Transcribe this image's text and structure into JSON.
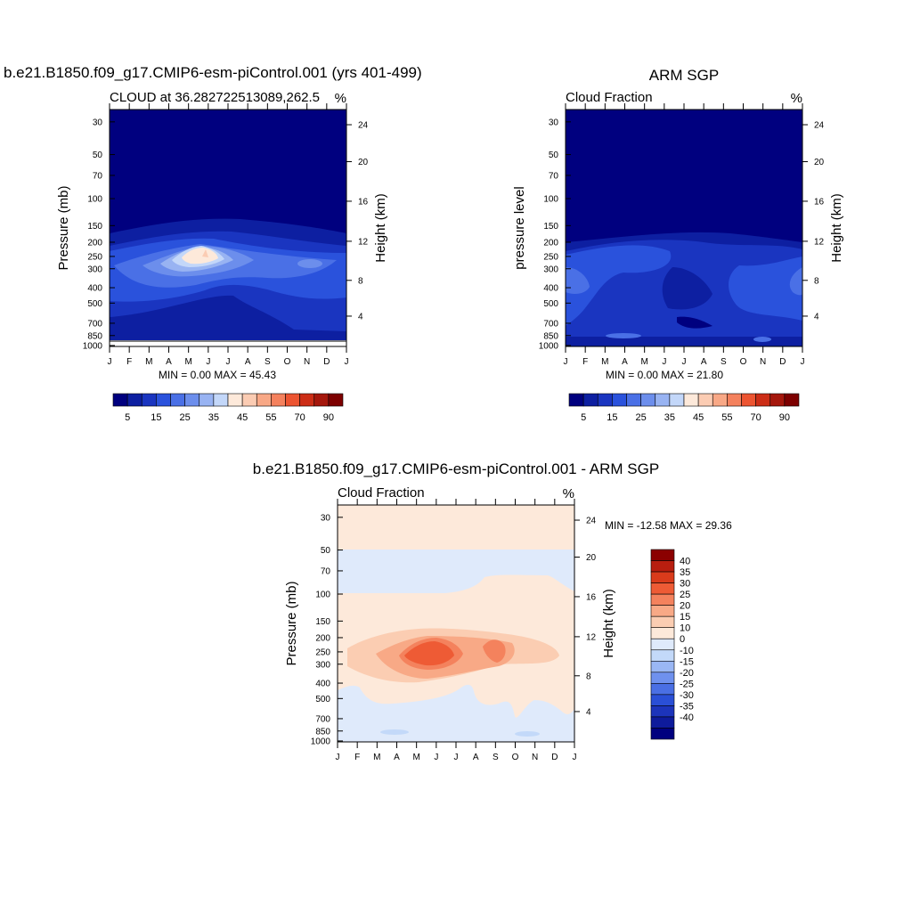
{
  "colors": {
    "seq": [
      "#00007f",
      "#0d1fa1",
      "#1a35c0",
      "#2a52dc",
      "#4a70e6",
      "#6c8eec",
      "#98b3f2",
      "#c3d7f9",
      "#fde9da",
      "#fbccb3",
      "#f8a886",
      "#f4815d",
      "#ec5431",
      "#cc2d16",
      "#a5170c",
      "#7d0000"
    ],
    "diff": [
      "#00007f",
      "#0e1b9c",
      "#1c34bb",
      "#2a4fd6",
      "#4a6fe4",
      "#6f91ee",
      "#9ab7f4",
      "#c3d9f9",
      "#dfeafb",
      "#fde9da",
      "#fbcdb2",
      "#f8a986",
      "#f4825d",
      "#ee5b35",
      "#d93b1b",
      "#b81e0f",
      "#8b0000"
    ]
  },
  "chart_data": [
    {
      "type": "heatmap",
      "title": "b.e21.B1850.f09_g17.CMIP6-esm-piControl.001 (yrs 401-499)",
      "subtitle_left": "CLOUD at 36.282722513089,262.5",
      "subtitle_right": "%",
      "ylabel": "Pressure (mb)",
      "ylabel_right": "Height (km)",
      "stats": "MIN =   0.00 MAX =  45.43",
      "x_ticks": [
        "J",
        "F",
        "M",
        "A",
        "M",
        "J",
        "J",
        "A",
        "S",
        "O",
        "N",
        "D",
        "J"
      ],
      "y_ticks": [
        "30",
        "50",
        "70",
        "100",
        "150",
        "200",
        "250",
        "300",
        "400",
        "500",
        "700",
        "850",
        "1000"
      ],
      "y_ticks_right": [
        "24",
        "20",
        "16",
        "12",
        "8",
        "4"
      ],
      "colorbar_labels": [
        "5",
        "15",
        "25",
        "35",
        "45",
        "55",
        "70",
        "90"
      ],
      "levels": [
        0,
        5,
        10,
        15,
        20,
        25,
        30,
        35,
        40,
        45,
        50,
        55,
        60,
        70,
        80,
        90
      ],
      "value_range": [
        0,
        45.43
      ]
    },
    {
      "type": "heatmap",
      "title": "ARM SGP",
      "subtitle_left": "Cloud Fraction",
      "subtitle_right": "%",
      "ylabel": "pressure level",
      "ylabel_right": "Height (km)",
      "stats": "MIN =   0.00 MAX =  21.80",
      "x_ticks": [
        "J",
        "F",
        "M",
        "A",
        "M",
        "J",
        "J",
        "A",
        "S",
        "O",
        "N",
        "D",
        "J"
      ],
      "y_ticks": [
        "30",
        "50",
        "70",
        "100",
        "150",
        "200",
        "250",
        "300",
        "400",
        "500",
        "700",
        "850",
        "1000"
      ],
      "y_ticks_right": [
        "24",
        "20",
        "16",
        "12",
        "8",
        "4"
      ],
      "colorbar_labels": [
        "5",
        "15",
        "25",
        "35",
        "45",
        "55",
        "70",
        "90"
      ],
      "levels": [
        0,
        5,
        10,
        15,
        20,
        25,
        30,
        35,
        40,
        45,
        50,
        55,
        60,
        70,
        80,
        90
      ],
      "value_range": [
        0,
        21.8
      ]
    },
    {
      "type": "heatmap",
      "title": "b.e21.B1850.f09_g17.CMIP6-esm-piControl.001 - ARM SGP",
      "subtitle_left": "Cloud Fraction",
      "subtitle_right": "%",
      "ylabel": "Pressure (mb)",
      "ylabel_right": "Height (km)",
      "stats": "MIN = -12.58 MAX =  29.36",
      "x_ticks": [
        "J",
        "F",
        "M",
        "A",
        "M",
        "J",
        "J",
        "A",
        "S",
        "O",
        "N",
        "D",
        "J"
      ],
      "y_ticks": [
        "30",
        "50",
        "70",
        "100",
        "150",
        "200",
        "250",
        "300",
        "400",
        "500",
        "700",
        "850",
        "1000"
      ],
      "y_ticks_right": [
        "24",
        "20",
        "16",
        "12",
        "8",
        "4"
      ],
      "colorbar_labels": [
        "40",
        "35",
        "30",
        "25",
        "20",
        "15",
        "10",
        "0",
        "-10",
        "-15",
        "-20",
        "-25",
        "-30",
        "-35",
        "-40"
      ],
      "value_range": [
        -12.58,
        29.36
      ]
    }
  ]
}
